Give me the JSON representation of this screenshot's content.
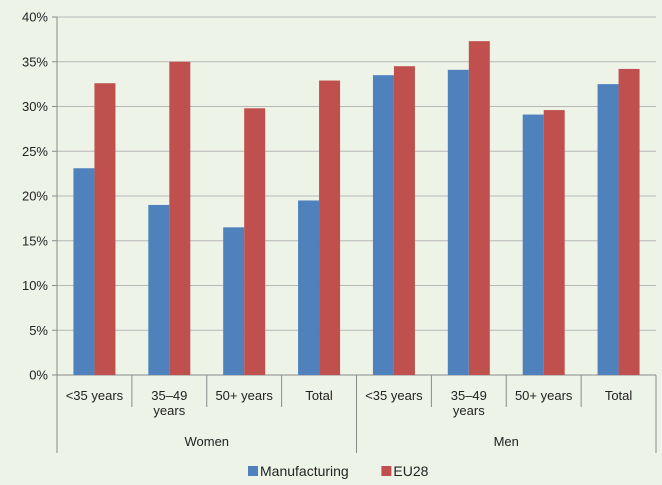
{
  "chart_data": {
    "type": "bar",
    "groups": [
      {
        "name": "Women",
        "categories": [
          [
            "<35 years"
          ],
          [
            "35–49",
            "years"
          ],
          [
            "50+ years"
          ],
          [
            "Total"
          ]
        ]
      },
      {
        "name": "Men",
        "categories": [
          [
            "<35 years"
          ],
          [
            "35–49",
            "years"
          ],
          [
            "50+ years"
          ],
          [
            "Total"
          ]
        ]
      }
    ],
    "series": [
      {
        "name": "Manufacturing",
        "color": "#4f81bd",
        "values": [
          23.1,
          19.0,
          16.5,
          19.5,
          33.5,
          34.1,
          29.1,
          32.5
        ]
      },
      {
        "name": "EU28",
        "color": "#c0504d",
        "values": [
          32.6,
          35.0,
          29.8,
          32.9,
          34.5,
          37.3,
          29.6,
          34.2
        ]
      }
    ],
    "ylim": [
      0,
      40
    ],
    "yticks": [
      "0%",
      "5%",
      "10%",
      "15%",
      "20%",
      "25%",
      "30%",
      "35%",
      "40%"
    ],
    "grid": true,
    "legend_position": "bottom"
  }
}
